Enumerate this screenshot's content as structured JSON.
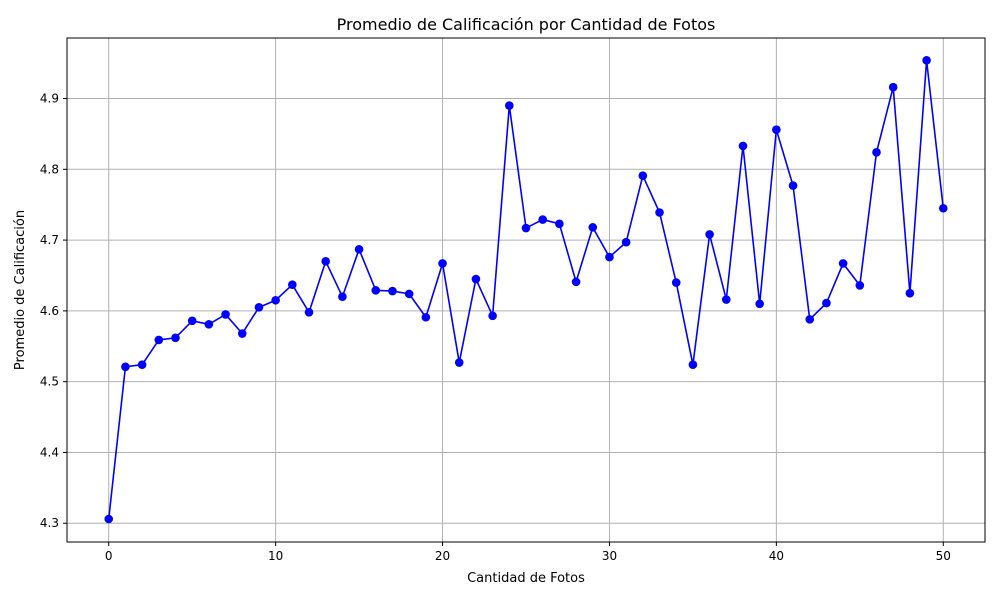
{
  "chart_data": {
    "type": "line",
    "title": "Promedio de Calificación por Cantidad de Fotos",
    "xlabel": "Cantidad de Fotos",
    "ylabel": "Promedio de Calificación",
    "xlim": [
      -2.5,
      52.5
    ],
    "ylim": [
      4.2735,
      4.9855
    ],
    "xticks": [
      0,
      10,
      20,
      30,
      40,
      50
    ],
    "yticks": [
      4.3,
      4.4,
      4.5,
      4.6,
      4.7,
      4.8,
      4.9
    ],
    "xtick_labels": [
      "0",
      "10",
      "20",
      "30",
      "40",
      "50"
    ],
    "ytick_labels": [
      "4.3",
      "4.4",
      "4.5",
      "4.6",
      "4.7",
      "4.8",
      "4.9"
    ],
    "grid": true,
    "line_color": "#0000ff",
    "marker": "circle",
    "series": [
      {
        "x": [
          0,
          1,
          2,
          3,
          4,
          5,
          6,
          7,
          8,
          9,
          10,
          11,
          12,
          13,
          14,
          15,
          16,
          17,
          18,
          19,
          20,
          21,
          22,
          23,
          24,
          25,
          26,
          27,
          28,
          29,
          30,
          31,
          32,
          33,
          34,
          35,
          36,
          37,
          38,
          39,
          40,
          41,
          42,
          43,
          44,
          45,
          46,
          47,
          48,
          49,
          50
        ],
        "values": [
          4.306,
          4.521,
          4.524,
          4.559,
          4.562,
          4.586,
          4.581,
          4.595,
          4.568,
          4.605,
          4.615,
          4.637,
          4.598,
          4.67,
          4.62,
          4.687,
          4.629,
          4.628,
          4.624,
          4.591,
          4.667,
          4.527,
          4.645,
          4.593,
          4.89,
          4.717,
          4.729,
          4.723,
          4.641,
          4.718,
          4.676,
          4.697,
          4.791,
          4.739,
          4.64,
          4.524,
          4.708,
          4.616,
          4.833,
          4.61,
          4.856,
          4.777,
          4.588,
          4.611,
          4.667,
          4.636,
          4.824,
          4.916,
          4.625,
          4.954,
          4.745
        ]
      }
    ]
  }
}
